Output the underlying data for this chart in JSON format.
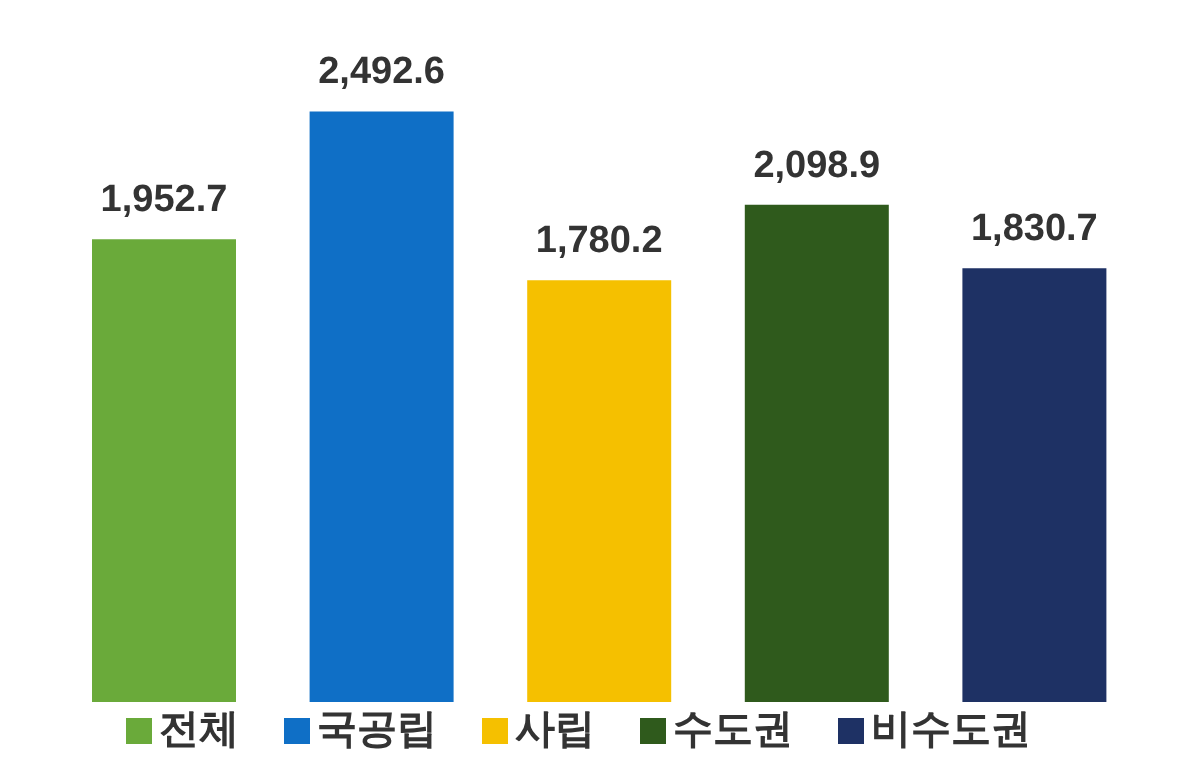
{
  "chart_data": {
    "type": "bar",
    "categories": [
      null,
      null,
      null,
      null,
      null
    ],
    "stacked": true,
    "series": [
      {
        "name": "전체",
        "color": "#6aaa3a",
        "values": [
          1952.7,
          null,
          null,
          null,
          null
        ],
        "value_labels": [
          "1,952.7",
          null,
          null,
          null,
          null
        ]
      },
      {
        "name": "국공립",
        "color": "#0f6fc6",
        "values": [
          null,
          2492.6,
          null,
          null,
          null
        ],
        "value_labels": [
          null,
          "2,492.6",
          null,
          null,
          null
        ]
      },
      {
        "name": "사립",
        "color": "#f5c000",
        "values": [
          null,
          null,
          1780.2,
          null,
          null
        ],
        "value_labels": [
          null,
          null,
          "1,780.2",
          null,
          null
        ]
      },
      {
        "name": "수도권",
        "color": "#2f5a1c",
        "values": [
          null,
          null,
          null,
          2098.9,
          null
        ],
        "value_labels": [
          null,
          null,
          null,
          "2,098.9",
          null
        ]
      },
      {
        "name": "비수도권",
        "color": "#1e3164",
        "values": [
          null,
          null,
          null,
          null,
          1830.7
        ],
        "value_labels": [
          null,
          null,
          null,
          null,
          "1,830.7"
        ]
      }
    ],
    "legend": "bottom",
    "tick_labels": false,
    "grid": false
  }
}
